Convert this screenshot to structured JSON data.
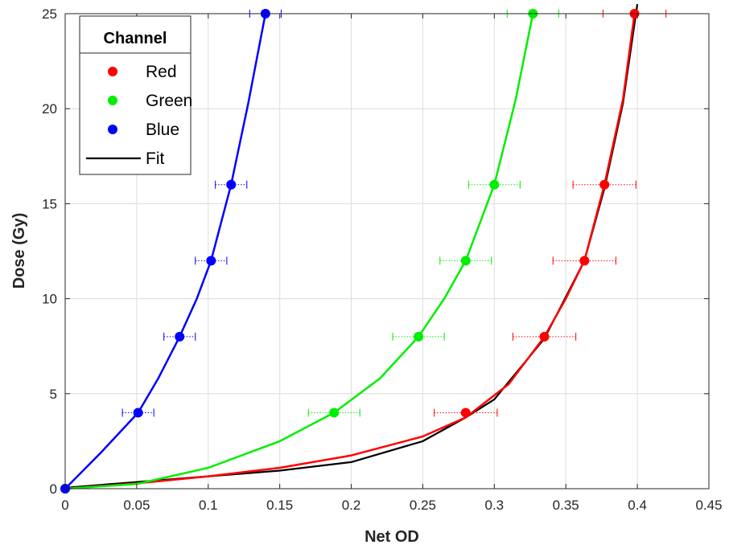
{
  "chart_data": {
    "type": "scatter",
    "xlabel": "Net OD",
    "ylabel": "Dose (Gy)",
    "xlim": [
      0,
      0.45
    ],
    "ylim": [
      0,
      25
    ],
    "xticks": [
      0,
      0.05,
      0.1,
      0.15,
      0.2,
      0.25,
      0.3,
      0.35,
      0.4,
      0.45
    ],
    "xtick_labels": [
      "0",
      "0.05",
      "0.1",
      "0.15",
      "0.2",
      "0.25",
      "0.3",
      "0.35",
      "0.4",
      "0.45"
    ],
    "yticks": [
      0,
      5,
      10,
      15,
      20,
      25
    ],
    "ytick_labels": [
      "0",
      "5",
      "10",
      "15",
      "20",
      "25"
    ],
    "grid": true,
    "legend": {
      "title": "Channel",
      "position": "top-left",
      "entries": [
        {
          "label": "Red",
          "kind": "marker",
          "color": "#ff0000"
        },
        {
          "label": "Green",
          "kind": "marker",
          "color": "#00ee00"
        },
        {
          "label": "Blue",
          "kind": "marker",
          "color": "#0000ff"
        },
        {
          "label": "Fit",
          "kind": "line",
          "color": "#000000"
        }
      ]
    },
    "series": [
      {
        "name": "Red",
        "color": "#ff0000",
        "points": [
          {
            "x": 0.0,
            "y": 0,
            "xerr": 0.0
          },
          {
            "x": 0.28,
            "y": 4,
            "xerr": 0.022
          },
          {
            "x": 0.335,
            "y": 8,
            "xerr": 0.022
          },
          {
            "x": 0.363,
            "y": 12,
            "xerr": 0.022
          },
          {
            "x": 0.377,
            "y": 16,
            "xerr": 0.022
          },
          {
            "x": 0.398,
            "y": 25,
            "xerr": 0.022
          }
        ],
        "fit": [
          [
            0,
            0
          ],
          [
            0.05,
            0.28
          ],
          [
            0.1,
            0.65
          ],
          [
            0.15,
            1.1
          ],
          [
            0.2,
            1.75
          ],
          [
            0.25,
            2.75
          ],
          [
            0.28,
            3.75
          ],
          [
            0.31,
            5.5
          ],
          [
            0.335,
            8
          ],
          [
            0.35,
            10
          ],
          [
            0.363,
            12
          ],
          [
            0.377,
            16
          ],
          [
            0.39,
            20.5
          ],
          [
            0.398,
            25
          ]
        ]
      },
      {
        "name": "Green",
        "color": "#00ee00",
        "points": [
          {
            "x": 0.0,
            "y": 0,
            "xerr": 0.0
          },
          {
            "x": 0.188,
            "y": 4,
            "xerr": 0.018
          },
          {
            "x": 0.247,
            "y": 8,
            "xerr": 0.018
          },
          {
            "x": 0.28,
            "y": 12,
            "xerr": 0.018
          },
          {
            "x": 0.3,
            "y": 16,
            "xerr": 0.018
          },
          {
            "x": 0.327,
            "y": 25,
            "xerr": 0.018
          }
        ],
        "fit": [
          [
            0,
            0
          ],
          [
            0.05,
            0.25
          ],
          [
            0.1,
            1.1
          ],
          [
            0.15,
            2.5
          ],
          [
            0.188,
            4
          ],
          [
            0.22,
            5.8
          ],
          [
            0.247,
            8
          ],
          [
            0.265,
            10
          ],
          [
            0.28,
            12
          ],
          [
            0.3,
            16
          ],
          [
            0.315,
            20.5
          ],
          [
            0.327,
            25
          ]
        ]
      },
      {
        "name": "Blue",
        "color": "#0000ff",
        "points": [
          {
            "x": 0.0,
            "y": 0,
            "xerr": 0.0
          },
          {
            "x": 0.051,
            "y": 4,
            "xerr": 0.011
          },
          {
            "x": 0.08,
            "y": 8,
            "xerr": 0.011
          },
          {
            "x": 0.102,
            "y": 12,
            "xerr": 0.011
          },
          {
            "x": 0.116,
            "y": 16,
            "xerr": 0.011
          },
          {
            "x": 0.14,
            "y": 25,
            "xerr": 0.011
          }
        ],
        "fit": [
          [
            0,
            0
          ],
          [
            0.025,
            1.9
          ],
          [
            0.051,
            4
          ],
          [
            0.065,
            5.8
          ],
          [
            0.08,
            8
          ],
          [
            0.092,
            10
          ],
          [
            0.102,
            12
          ],
          [
            0.116,
            16
          ],
          [
            0.128,
            20.3
          ],
          [
            0.14,
            25
          ]
        ]
      }
    ],
    "fit_line": {
      "name": "Fit",
      "color": "#000000",
      "points": [
        [
          0,
          0.05
        ],
        [
          0.05,
          0.35
        ],
        [
          0.1,
          0.65
        ],
        [
          0.15,
          0.95
        ],
        [
          0.2,
          1.4
        ],
        [
          0.25,
          2.5
        ],
        [
          0.28,
          3.75
        ],
        [
          0.3,
          4.7
        ],
        [
          0.335,
          7.9
        ],
        [
          0.363,
          12
        ],
        [
          0.377,
          15.8
        ],
        [
          0.39,
          20.3
        ],
        [
          0.4,
          25.5
        ]
      ]
    }
  }
}
